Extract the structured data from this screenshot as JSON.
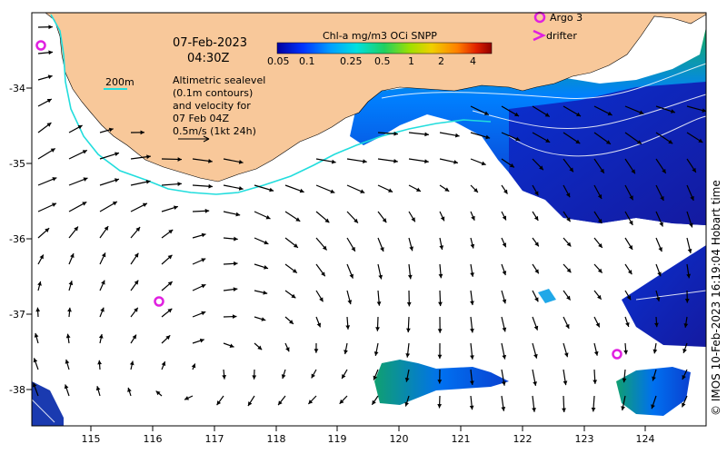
{
  "title": {
    "date": "07-Feb-2023",
    "time": "04:30Z"
  },
  "colorbar": {
    "title": "Chl-a mg/m3 OCi SNPP",
    "ticks": [
      "0.05",
      "0.1",
      "0.25",
      "0.5",
      "1",
      "2",
      "4"
    ],
    "colors": [
      "#0000a0",
      "#0033ff",
      "#00a0ff",
      "#00e0e0",
      "#20d060",
      "#a0e000",
      "#f0d000",
      "#ff8000",
      "#e02000",
      "#900000"
    ]
  },
  "depth_legend": {
    "label": "200m",
    "color": "#22dddd"
  },
  "altimetry_note": {
    "line1": "Altimetric sealevel",
    "line2": "(0.1m contours)",
    "line3": "and velocity for",
    "line4": "07 Feb 04Z",
    "line5": "0.5m/s (1kt 24h)"
  },
  "markers": {
    "argo_label": "Argo 3",
    "drifter_label": "drifter",
    "color": "#e020e0"
  },
  "x_axis": {
    "ticks": [
      "115",
      "116",
      "117",
      "118",
      "119",
      "120",
      "121",
      "122",
      "123",
      "124"
    ]
  },
  "y_axis": {
    "ticks": [
      "-34",
      "-35",
      "-36",
      "-37",
      "-38"
    ]
  },
  "credit": "© IMOS 10-Feb-2023 16:19:04 Hobart time",
  "colors": {
    "land": "#f8c89a",
    "ocean": "#ffffff",
    "arrow": "#000000"
  }
}
